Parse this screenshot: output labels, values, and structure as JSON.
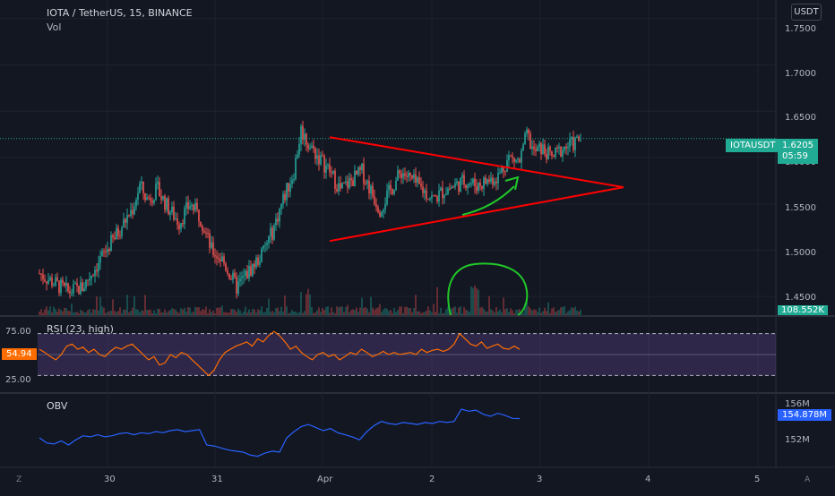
{
  "header": {
    "symbol_title": "IOTA / TetherUS, 15, BINANCE",
    "volume_label": "Vol",
    "currency": "USDT"
  },
  "price_scale": {
    "ticks": [
      "1.7500",
      "1.7000",
      "1.6500",
      "1.6000",
      "1.5500",
      "1.5000",
      "1.4500"
    ],
    "ticker_label": "IOTAUSDT",
    "last_price": "1.6205",
    "countdown": "05:59",
    "volume_tag": "108.552K"
  },
  "rsi_panel": {
    "label": "RSI (23, high)",
    "ticks": [
      "75.00",
      "25.00"
    ],
    "current": "54.94"
  },
  "obv_panel": {
    "label": "OBV",
    "ticks": [
      "156M",
      "152M"
    ],
    "current": "154.878M"
  },
  "time_axis": {
    "labels": [
      "30",
      "31",
      "Apr",
      "2",
      "3",
      "4",
      "5"
    ]
  },
  "corner_icons": {
    "left": "Z",
    "right": "A"
  },
  "colors": {
    "background": "#131722",
    "up": "#26a69a",
    "down": "#ef5350",
    "rsi_line": "#ff6d00",
    "rsi_band": "#7e57c2",
    "obv_line": "#2962ff",
    "triangle": "#ff0000",
    "annotation": "#21c729",
    "last_price_tag": "#22ab94"
  },
  "chart_data": [
    {
      "type": "candlestick",
      "title": "IOTA / TetherUS, 15, BINANCE",
      "ylim": [
        1.43,
        1.77
      ],
      "x_ticks": [
        "30",
        "31",
        "Apr",
        "2",
        "3",
        "4",
        "5"
      ],
      "last_value": 1.6205,
      "close_path": [
        [
          0,
          1.475
        ],
        [
          8,
          1.465
        ],
        [
          16,
          1.455
        ],
        [
          24,
          1.46
        ],
        [
          34,
          1.49
        ],
        [
          44,
          1.52
        ],
        [
          52,
          1.545
        ],
        [
          56,
          1.57
        ],
        [
          60,
          1.555
        ],
        [
          66,
          1.565
        ],
        [
          72,
          1.545
        ],
        [
          78,
          1.53
        ],
        [
          84,
          1.55
        ],
        [
          90,
          1.535
        ],
        [
          96,
          1.5
        ],
        [
          102,
          1.49
        ],
        [
          110,
          1.46
        ],
        [
          118,
          1.48
        ],
        [
          124,
          1.495
        ],
        [
          130,
          1.52
        ],
        [
          136,
          1.555
        ],
        [
          142,
          1.585
        ],
        [
          146,
          1.63
        ],
        [
          150,
          1.615
        ],
        [
          156,
          1.6
        ],
        [
          162,
          1.585
        ],
        [
          168,
          1.565
        ],
        [
          174,
          1.575
        ],
        [
          180,
          1.585
        ],
        [
          186,
          1.56
        ],
        [
          190,
          1.545
        ],
        [
          196,
          1.565
        ],
        [
          202,
          1.585
        ],
        [
          208,
          1.575
        ],
        [
          214,
          1.565
        ],
        [
          220,
          1.555
        ],
        [
          226,
          1.565
        ],
        [
          232,
          1.57
        ],
        [
          238,
          1.575
        ],
        [
          244,
          1.57
        ],
        [
          250,
          1.575
        ],
        [
          256,
          1.58
        ],
        [
          262,
          1.6
        ],
        [
          268,
          1.595
        ],
        [
          272,
          1.625
        ],
        [
          276,
          1.605
        ],
        [
          280,
          1.61
        ],
        [
          286,
          1.6
        ],
        [
          292,
          1.61
        ],
        [
          298,
          1.615
        ],
        [
          302,
          1.6205
        ]
      ],
      "drawings": {
        "triangle_upper": [
          [
            0,
            1.622
          ],
          [
            164,
            1.568
          ]
        ],
        "triangle_lower": [
          [
            0,
            1.51
          ],
          [
            164,
            1.568
          ]
        ]
      }
    },
    {
      "type": "line",
      "title": "RSI (23, high)",
      "yticks": [
        25,
        75
      ],
      "ylim": [
        15,
        85
      ],
      "band": [
        30,
        70
      ],
      "last_value": 54.94,
      "series": [
        {
          "values": [
            55,
            52,
            48,
            45,
            50,
            58,
            60,
            55,
            57,
            52,
            55,
            50,
            48,
            53,
            57,
            55,
            58,
            60,
            55,
            50,
            45,
            48,
            40,
            42,
            50,
            47,
            52,
            50,
            45,
            40,
            35,
            30,
            35,
            45,
            52,
            55,
            58,
            60,
            62,
            58,
            65,
            62,
            68,
            72,
            68,
            62,
            55,
            58,
            52,
            48,
            45,
            50,
            52,
            48,
            50,
            45,
            48,
            52,
            50,
            55,
            52,
            48,
            50,
            53,
            50,
            52,
            50,
            51,
            52,
            50,
            55,
            52,
            54,
            55,
            53,
            55,
            60,
            70,
            65,
            60,
            58,
            62,
            56,
            58,
            60,
            56,
            55,
            58,
            54.94
          ]
        }
      ]
    },
    {
      "type": "line",
      "title": "OBV",
      "yticks": [
        152,
        156
      ],
      "ylim": [
        150.2,
        157.2
      ],
      "last_value": 154.878,
      "series": [
        {
          "values": [
            153.0,
            152.5,
            152.4,
            152.7,
            152.3,
            152.8,
            153.2,
            153.1,
            153.3,
            153.1,
            153.2,
            153.4,
            153.5,
            153.3,
            153.5,
            153.4,
            153.6,
            153.5,
            153.7,
            153.8,
            153.6,
            153.7,
            153.8,
            152.3,
            152.2,
            152.0,
            151.8,
            151.7,
            151.6,
            151.3,
            151.2,
            151.5,
            151.7,
            151.6,
            153.0,
            153.6,
            154.1,
            154.3,
            154.0,
            153.7,
            153.9,
            153.5,
            153.3,
            153.1,
            152.8,
            153.6,
            154.2,
            154.6,
            154.4,
            154.3,
            154.5,
            154.4,
            154.3,
            154.5,
            154.4,
            154.6,
            154.5,
            154.6,
            155.8,
            155.6,
            155.7,
            155.3,
            155.1,
            155.4,
            155.2,
            154.9,
            154.878
          ]
        }
      ]
    }
  ]
}
